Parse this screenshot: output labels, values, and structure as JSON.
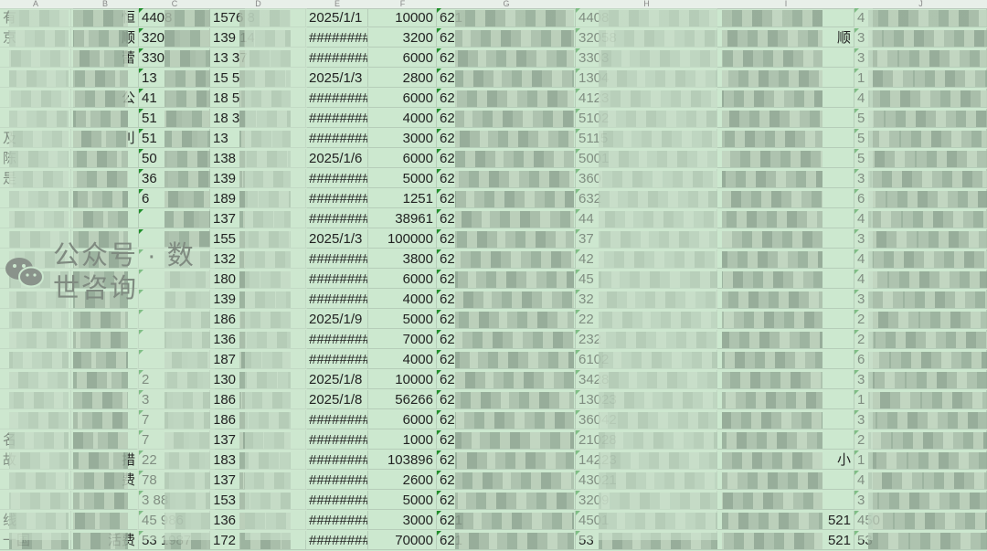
{
  "columns": [
    "A",
    "B",
    "C",
    "D",
    "E",
    "F",
    "G",
    "H",
    "I",
    "J"
  ],
  "colors": {
    "background": "#cce8cf",
    "grid": "#b6cdb9",
    "text_marker": "#1f8f2a"
  },
  "rows": [
    [
      "有",
      "恒",
      "4408",
      "1576    8",
      "2025/1/1",
      "10000",
      "621",
      "4408",
      "",
      "4"
    ],
    [
      "京",
      "顺",
      "320",
      "139    14",
      "########",
      "3200",
      "62",
      "32058",
      "顺",
      "3"
    ],
    [
      "",
      "蕾",
      "330",
      "13    37",
      "########",
      "6000",
      "62",
      "3303",
      "",
      "3"
    ],
    [
      "",
      "",
      "13",
      "15    5",
      "2025/1/3",
      "2800",
      "62",
      "1304",
      "",
      "1"
    ],
    [
      "",
      "公",
      "41",
      "18    5",
      "########",
      "6000",
      "62",
      "4123",
      "",
      "4"
    ],
    [
      "",
      "",
      "51",
      "18    3",
      "########",
      "4000",
      "62",
      "5102",
      "",
      "5"
    ],
    [
      "及",
      "刂",
      "51",
      "13",
      "########",
      "3000",
      "62",
      "5115",
      "",
      "5"
    ],
    [
      "陈",
      "",
      "50",
      "138",
      "2025/1/6",
      "6000",
      "62",
      "5001",
      "",
      "5"
    ],
    [
      "是",
      "",
      "36",
      "139",
      "########",
      "5000",
      "62",
      "360",
      "",
      "3"
    ],
    [
      "",
      "",
      "6",
      "189",
      "########",
      "1251",
      "62",
      "632",
      "",
      "6"
    ],
    [
      "",
      "",
      "",
      "137",
      "########",
      "38961",
      "62",
      "44",
      "",
      "4"
    ],
    [
      "",
      "",
      "",
      "155",
      "2025/1/3",
      "100000",
      "62",
      "37",
      "",
      "3"
    ],
    [
      "",
      "",
      "",
      "132",
      "########",
      "3800",
      "62",
      "42",
      "",
      "4"
    ],
    [
      "",
      "",
      "",
      "180",
      "########",
      "6000",
      "62",
      "45",
      "",
      "4"
    ],
    [
      "",
      "",
      "",
      "139",
      "########",
      "4000",
      "62",
      "32",
      "",
      "3"
    ],
    [
      "",
      "",
      "",
      "186",
      "2025/1/9",
      "5000",
      "62",
      "22",
      "",
      "2"
    ],
    [
      "",
      "",
      "",
      "136",
      "########",
      "7000",
      "62",
      "232",
      "",
      "2"
    ],
    [
      "",
      "",
      "",
      "187",
      "########",
      "4000",
      "62",
      "6102",
      "",
      "6"
    ],
    [
      "",
      "",
      "2",
      "130",
      "2025/1/8",
      "10000",
      "62",
      "3428",
      "",
      "3"
    ],
    [
      "",
      "",
      "3",
      "186",
      "2025/1/8",
      "56266",
      "62",
      "13023",
      "",
      "1"
    ],
    [
      "",
      "",
      "7",
      "186",
      "########",
      "6000",
      "62",
      "36042",
      "",
      "3"
    ],
    [
      "名",
      "",
      "7",
      "137",
      "########",
      "1000",
      "62",
      "21028",
      "",
      "2"
    ],
    [
      "故",
      "措",
      "22",
      "183",
      "########",
      "103896",
      "62",
      "14223",
      "小",
      "1"
    ],
    [
      "",
      "费",
      "78",
      "137",
      "########",
      "2600",
      "62",
      "43021",
      "",
      "4"
    ],
    [
      "",
      "",
      "3   88",
      "153",
      "########",
      "5000",
      "62",
      "3209",
      "",
      "3"
    ],
    [
      "线",
      "",
      "45   986",
      "136",
      "########",
      "3000",
      "621",
      "4501",
      "521",
      "450"
    ],
    [
      "一国",
      "活费",
      "53   1987",
      "172",
      "########",
      "70000",
      "621",
      "53",
      "521",
      "53"
    ]
  ],
  "watermark": {
    "icon": "wechat-icon",
    "text": "公众号 · 数世咨询"
  }
}
